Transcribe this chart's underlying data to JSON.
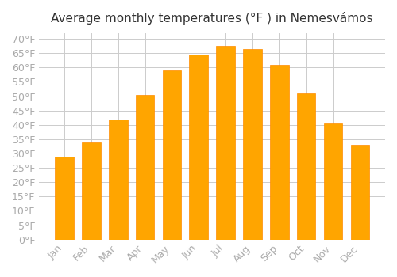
{
  "title": "Average monthly temperatures (°F ) in Nemesvámos",
  "months": [
    "Jan",
    "Feb",
    "Mar",
    "Apr",
    "May",
    "Jun",
    "Jul",
    "Aug",
    "Sep",
    "Oct",
    "Nov",
    "Dec"
  ],
  "values": [
    29,
    34,
    42,
    50.5,
    59,
    64.5,
    67.5,
    66.5,
    61,
    51,
    40.5,
    33
  ],
  "bar_color": "#FFA500",
  "bar_edge_color": "#FF8C00",
  "background_color": "#FFFFFF",
  "grid_color": "#CCCCCC",
  "ylim": [
    0,
    72
  ],
  "yticks": [
    0,
    5,
    10,
    15,
    20,
    25,
    30,
    35,
    40,
    45,
    50,
    55,
    60,
    65,
    70
  ],
  "title_fontsize": 11,
  "tick_fontsize": 9,
  "tick_color": "#AAAAAA"
}
